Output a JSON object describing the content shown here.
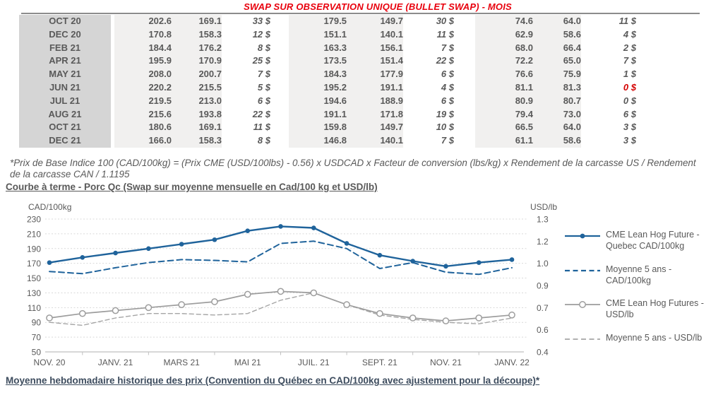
{
  "title": "SWAP SUR OBSERVATION UNIQUE (BULLET SWAP) - MOIS",
  "colors": {
    "green": "#00a651",
    "red": "#d40000",
    "title_red": "#e8000d",
    "blue": "#1f639b",
    "gray": "#9d9d9d"
  },
  "table": {
    "rows": [
      {
        "month": "OCT 20",
        "c1": "202.6",
        "c2": "169.1",
        "d1": "33 $",
        "c3": "179.5",
        "c4": "149.7",
        "d2": "30 $",
        "c5": "74.6",
        "c6": "64.0",
        "d3": "11 $"
      },
      {
        "month": "DEC 20",
        "c1": "170.8",
        "c2": "158.3",
        "d1": "12 $",
        "c3": "151.1",
        "c4": "140.1",
        "d2": "11 $",
        "c5": "62.9",
        "c6": "58.6",
        "d3": "4 $"
      },
      {
        "month": "FEB 21",
        "c1": "184.4",
        "c2": "176.2",
        "d1": "8 $",
        "c3": "163.3",
        "c4": "156.1",
        "d2": "7 $",
        "c5": "68.0",
        "c6": "66.4",
        "d3": "2 $"
      },
      {
        "month": "APR 21",
        "c1": "195.9",
        "c2": "170.9",
        "d1": "25 $",
        "c3": "173.5",
        "c4": "151.4",
        "d2": "22 $",
        "c5": "72.2",
        "c6": "65.0",
        "d3": "7 $"
      },
      {
        "month": "MAY 21",
        "c1": "208.0",
        "c2": "200.7",
        "d1": "7 $",
        "c3": "184.3",
        "c4": "177.9",
        "d2": "6 $",
        "c5": "76.6",
        "c6": "75.9",
        "d3": "1 $"
      },
      {
        "month": "JUN 21",
        "c1": "220.2",
        "c2": "215.5",
        "d1": "5 $",
        "c3": "195.2",
        "c4": "191.1",
        "d2": "4 $",
        "c5": "81.1",
        "c6": "81.3",
        "d3": "0 $",
        "d3_red": true
      },
      {
        "month": "JUL 21",
        "c1": "219.5",
        "c2": "213.0",
        "d1": "6 $",
        "c3": "194.6",
        "c4": "188.9",
        "d2": "6 $",
        "c5": "80.9",
        "c6": "80.7",
        "d3": "0 $"
      },
      {
        "month": "AUG 21",
        "c1": "215.6",
        "c2": "193.8",
        "d1": "22 $",
        "c3": "191.1",
        "c4": "171.8",
        "d2": "19 $",
        "c5": "79.4",
        "c6": "73.0",
        "d3": "6 $"
      },
      {
        "month": "OCT 21",
        "c1": "180.6",
        "c2": "169.1",
        "d1": "11 $",
        "c3": "159.8",
        "c4": "149.7",
        "d2": "10 $",
        "c5": "66.5",
        "c6": "64.0",
        "d3": "3 $"
      },
      {
        "month": "DEC 21",
        "c1": "166.0",
        "c2": "158.3",
        "d1": "8 $",
        "c3": "146.8",
        "c4": "140.1",
        "d2": "7 $",
        "c5": "61.1",
        "c6": "58.6",
        "d3": "3 $"
      }
    ]
  },
  "footnote": "*Prix de Base Indice 100 (CAD/100kg) = (Prix CME (USD/100lbs) - 0.56) x USDCAD x Facteur de conversion (lbs/kg) x Rendement de la carcasse US / Rendement de la carcasse CAN / 1.1195",
  "headings": {
    "courbe": "Courbe à terme - Porc Qc (Swap sur moyenne mensuelle en Cad/100 kg et USD/lb)",
    "moyenne": "Moyenne hebdomadaire historique des prix (Convention du Québec en CAD/100kg avec ajustement pour la découpe)*"
  },
  "chart_data": {
    "type": "line",
    "n_points": 15,
    "x_tick_labels": [
      "NOV. 20",
      "JANV. 21",
      "MARS 21",
      "MAI 21",
      "JUIL. 21",
      "SEPT. 21",
      "NOV. 21",
      "JANV. 22"
    ],
    "left_axis": {
      "label": "CAD/100kg",
      "ticks": [
        230,
        210,
        190,
        170,
        150,
        130,
        110,
        90,
        70,
        50
      ],
      "range": [
        50,
        230
      ]
    },
    "right_axis": {
      "label": "USD/lb",
      "tick_labels": [
        "1.3",
        "1.2",
        "1.0",
        "0.9",
        "0.7",
        "0.6",
        "0.4"
      ],
      "range": [
        0.4,
        1.3
      ]
    },
    "grid": "horizontal-dashed",
    "legend_position": "right",
    "series": [
      {
        "name": "CME Lean Hog Future - Quebec CAD/100kg",
        "axis": "left",
        "line": "solid",
        "marker": "filled-circle",
        "color": "#1f639b",
        "values": [
          171,
          178,
          184,
          190,
          196,
          202,
          214,
          220,
          218,
          197,
          181,
          173,
          166,
          171,
          175
        ]
      },
      {
        "name": "Moyenne 5 ans - CAD/100kg",
        "axis": "left",
        "line": "dashed",
        "marker": "none",
        "color": "#1f639b",
        "values": [
          159,
          156,
          164,
          171,
          175,
          174,
          172,
          197,
          200,
          190,
          163,
          171,
          158,
          155,
          164
        ]
      },
      {
        "name": "CME Lean Hog Futures - USD/lb",
        "axis": "right",
        "line": "solid",
        "marker": "open-circle",
        "color": "#9d9d9d",
        "values": [
          0.63,
          0.66,
          0.68,
          0.7,
          0.72,
          0.74,
          0.79,
          0.81,
          0.8,
          0.72,
          0.66,
          0.63,
          0.61,
          0.63,
          0.65
        ]
      },
      {
        "name": "Moyenne 5 ans - USD/lb",
        "axis": "right",
        "line": "dashed",
        "marker": "none",
        "color": "#a5a5a5",
        "values": [
          0.6,
          0.58,
          0.63,
          0.66,
          0.66,
          0.65,
          0.66,
          0.75,
          0.8,
          0.72,
          0.65,
          0.62,
          0.6,
          0.59,
          0.63
        ]
      }
    ]
  }
}
